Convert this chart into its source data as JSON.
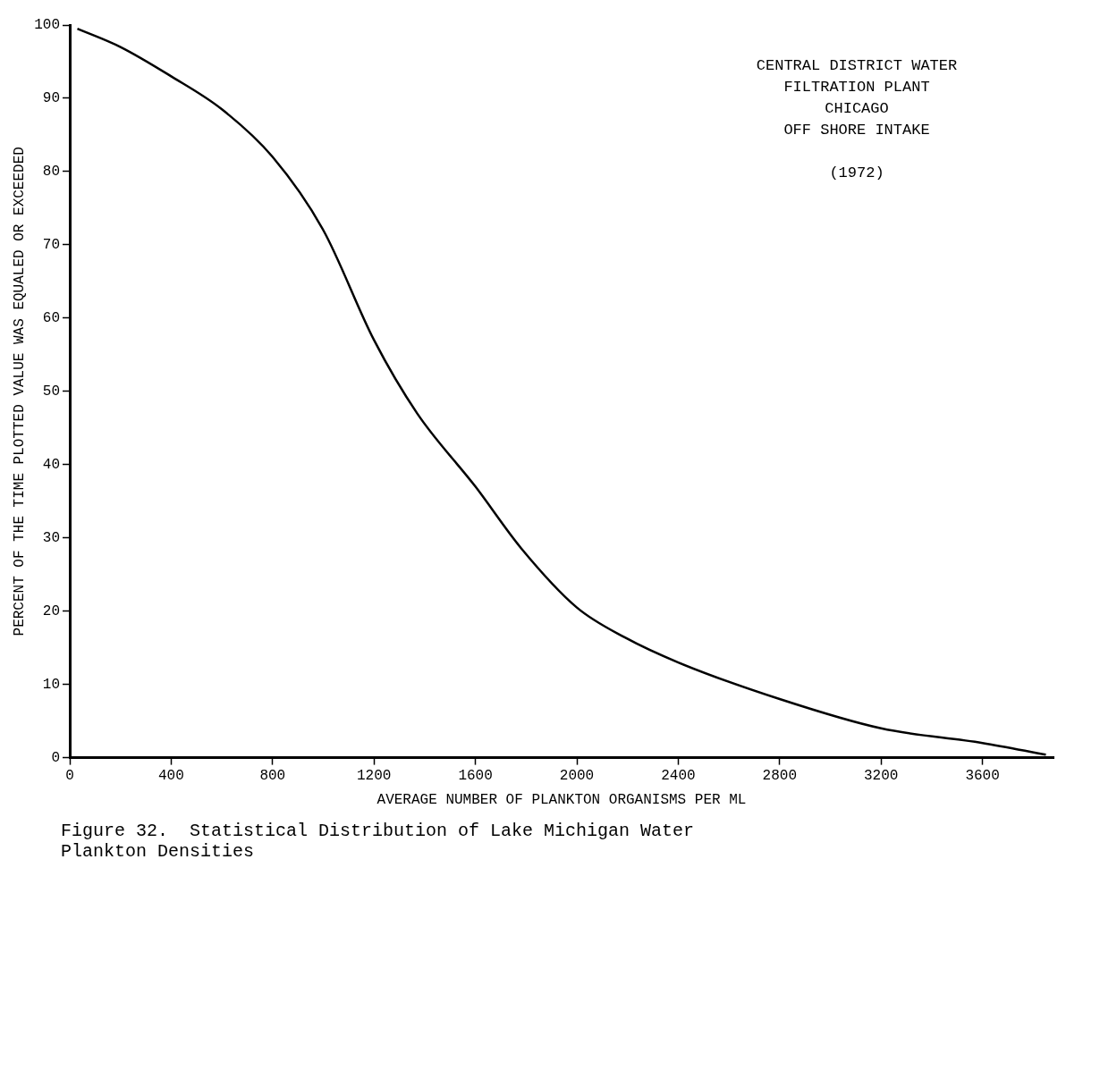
{
  "chart_data": {
    "type": "line",
    "xlabel": "AVERAGE NUMBER OF PLANKTON ORGANISMS PER ML",
    "ylabel": "PERCENT OF THE TIME PLOTTED VALUE WAS EQUALED OR EXCEEDED",
    "x": [
      30,
      200,
      400,
      600,
      800,
      1000,
      1200,
      1370,
      1600,
      1780,
      2000,
      2190,
      2400,
      2800,
      3200,
      3600,
      3850
    ],
    "series": [
      {
        "color": "#000000",
        "values": [
          99.5,
          97,
          93,
          88.5,
          82,
          72,
          57,
          47,
          37,
          28.6,
          20.5,
          16.4,
          13,
          8,
          4,
          2,
          0.4
        ]
      }
    ],
    "xlim": [
      0,
      3880
    ],
    "xticks": [
      0,
      400,
      800,
      1200,
      1600,
      2000,
      2400,
      2800,
      3200,
      3600
    ],
    "ylim": [
      0,
      100
    ],
    "yticks": [
      0,
      10,
      20,
      30,
      40,
      50,
      60,
      70,
      80,
      90,
      100
    ],
    "grid": false,
    "legend": false,
    "marker": "none",
    "line_style": "solid",
    "annotations": [
      "CENTRAL DISTRICT WATER\nFILTRATION PLANT\nCHICAGO\nOFF SHORE INTAKE\n\n(1972)",
      "Figure 32.  Statistical Distribution of Lake Michigan Water\nPlankton Densities"
    ]
  }
}
